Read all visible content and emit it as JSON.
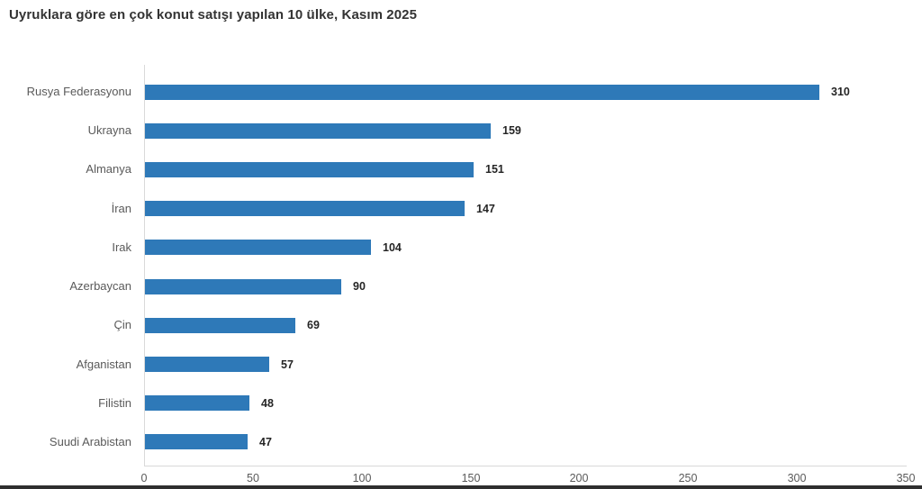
{
  "title": "Uyruklara göre en çok konut satışı yapılan 10 ülke, Kasım 2025",
  "chart_data": {
    "type": "bar",
    "orientation": "horizontal",
    "title": "Uyruklara göre en çok konut satışı yapılan 10 ülke, Kasım 2025",
    "categories": [
      "Rusya Federasyonu",
      "Ukrayna",
      "Almanya",
      "İran",
      "Irak",
      "Azerbaycan",
      "Çin",
      "Afganistan",
      "Filistin",
      "Suudi Arabistan"
    ],
    "values": [
      310,
      159,
      151,
      147,
      104,
      90,
      69,
      57,
      48,
      47
    ],
    "xlabel": "",
    "ylabel": "",
    "xlim": [
      0,
      350
    ],
    "x_ticks": [
      0,
      50,
      100,
      150,
      200,
      250,
      300,
      350
    ],
    "grid": false,
    "data_labels": true,
    "legend": "none"
  },
  "colors": {
    "bar": "#2e79b8",
    "title_text": "#333333",
    "category_text": "#5a5a5a",
    "value_text": "#252525",
    "tick_text": "#5a5a5a",
    "axis_line": "#d9d9d9",
    "bottom_strip": "#2f2f2f",
    "background": "#ffffff"
  }
}
